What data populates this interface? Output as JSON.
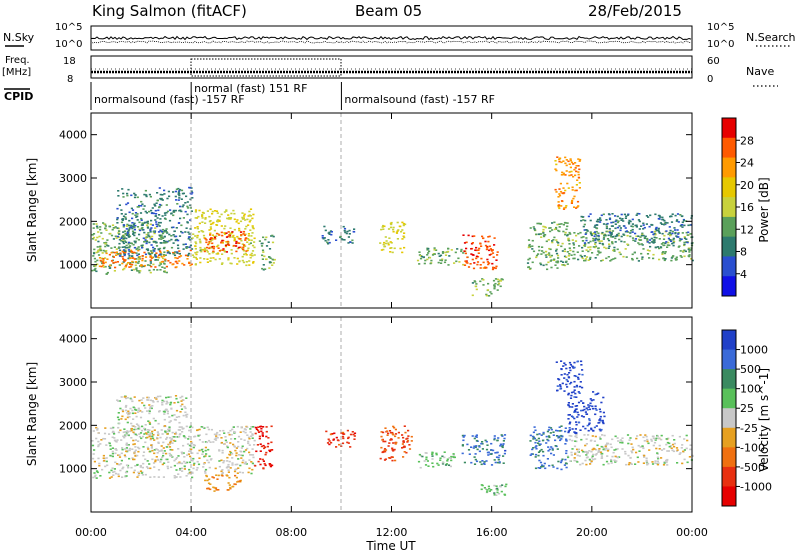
{
  "header": {
    "station": "King Salmon (fitACF)",
    "beam": "Beam 05",
    "date": "28/Feb/2015"
  },
  "labels": {
    "nsky": "N.Sky",
    "nsearch": "N.Search",
    "freq_line1": "Freq.",
    "freq_line2": "[MHz]",
    "nave": "Nave",
    "cpid": "CPID",
    "exp10_low": "10^0",
    "exp10_high": "10^5",
    "freq_ticks": [
      "18",
      "8"
    ],
    "nave_ticks": [
      "60",
      "0"
    ]
  },
  "cpid_segments": [
    {
      "label": "normalsound (fast) -157 RF",
      "start_hour": 0.0,
      "end_hour": 4.0
    },
    {
      "label": "normal (fast)  151 RF",
      "start_hour": 4.0,
      "end_hour": 10.0
    },
    {
      "label": "normalsound (fast) -157 RF",
      "start_hour": 10.0,
      "end_hour": 24.0
    }
  ],
  "x_axis": {
    "label": "Time UT",
    "range_hours": [
      0,
      24
    ],
    "tick_labels": [
      "00:00",
      "04:00",
      "08:00",
      "12:00",
      "16:00",
      "20:00",
      "00:00"
    ]
  },
  "y_axis": {
    "label": "Slant Range [km]",
    "range_km": [
      0,
      4500
    ],
    "tick_labels": [
      "1000",
      "2000",
      "3000",
      "4000"
    ]
  },
  "colorbars": {
    "power": {
      "label": "Power [dB]",
      "ticks": [
        "28",
        "24",
        "20",
        "16",
        "12",
        "8",
        "4"
      ],
      "colors": [
        "#e60000",
        "#ff5a00",
        "#ff9a00",
        "#e6c800",
        "#c8d23c",
        "#5aa05a",
        "#2d7a6e",
        "#2a4fd0",
        "#1010e6"
      ]
    },
    "velocity": {
      "label": "Velocity [m s^-1]",
      "ticks": [
        "1000",
        "500",
        "100",
        "25",
        "-25",
        "-100",
        "-500",
        "-1000"
      ],
      "colors": [
        "#2040c8",
        "#3a6ad8",
        "#3a8a60",
        "#59c05a",
        "#c8c8c8",
        "#e6a020",
        "#f07010",
        "#e83010",
        "#e60000"
      ]
    }
  },
  "chart_data": [
    {
      "type": "heatmap",
      "title": "Power [dB]",
      "xlabel": "Time UT",
      "ylabel": "Slant Range [km]",
      "xlim": [
        0,
        24
      ],
      "ylim": [
        0,
        4500
      ],
      "clim": [
        0,
        30
      ],
      "blobs": [
        {
          "t0": 0.0,
          "t1": 3.0,
          "r0": 800,
          "r1": 2000,
          "value": 12
        },
        {
          "t0": 0.3,
          "t1": 4.0,
          "r0": 950,
          "r1": 1350,
          "value": 24
        },
        {
          "t0": 1.0,
          "t1": 4.0,
          "r0": 1200,
          "r1": 2800,
          "value": 8
        },
        {
          "t0": 4.0,
          "t1": 6.5,
          "r0": 1000,
          "r1": 2300,
          "value": 16
        },
        {
          "t0": 4.5,
          "t1": 6.2,
          "r0": 1300,
          "r1": 1800,
          "value": 26
        },
        {
          "t0": 6.7,
          "t1": 7.3,
          "r0": 900,
          "r1": 1700,
          "value": 12
        },
        {
          "t0": 9.2,
          "t1": 10.5,
          "r0": 1500,
          "r1": 1900,
          "value": 8
        },
        {
          "t0": 11.5,
          "t1": 12.5,
          "r0": 1300,
          "r1": 2000,
          "value": 16
        },
        {
          "t0": 13.0,
          "t1": 15.0,
          "r0": 1000,
          "r1": 1400,
          "value": 12
        },
        {
          "t0": 14.8,
          "t1": 16.2,
          "r0": 900,
          "r1": 1700,
          "value": 26
        },
        {
          "t0": 15.2,
          "t1": 16.4,
          "r0": 300,
          "r1": 700,
          "value": 12
        },
        {
          "t0": 17.4,
          "t1": 19.0,
          "r0": 900,
          "r1": 2000,
          "value": 12
        },
        {
          "t0": 18.5,
          "t1": 19.5,
          "r0": 2300,
          "r1": 3500,
          "value": 22
        },
        {
          "t0": 19.0,
          "t1": 24.0,
          "r0": 1100,
          "r1": 1800,
          "value": 12
        },
        {
          "t0": 19.5,
          "t1": 24.0,
          "r0": 1500,
          "r1": 2200,
          "value": 8
        }
      ]
    },
    {
      "type": "heatmap",
      "title": "Velocity [m s^-1]",
      "xlabel": "Time UT",
      "ylabel": "Slant Range [km]",
      "xlim": [
        0,
        24
      ],
      "ylim": [
        0,
        4500
      ],
      "clim": [
        -1000,
        1000
      ],
      "blobs": [
        {
          "t0": 0.0,
          "t1": 4.0,
          "r0": 800,
          "r1": 2000,
          "value": 0
        },
        {
          "t0": 1.0,
          "t1": 3.8,
          "r0": 1800,
          "r1": 2700,
          "value": 0
        },
        {
          "t0": 4.0,
          "t1": 6.5,
          "r0": 900,
          "r1": 2000,
          "value": 0
        },
        {
          "t0": 6.5,
          "t1": 7.2,
          "r0": 1000,
          "r1": 2000,
          "value": -800
        },
        {
          "t0": 4.5,
          "t1": 6.0,
          "r0": 500,
          "r1": 900,
          "value": -300
        },
        {
          "t0": 9.3,
          "t1": 10.5,
          "r0": 1500,
          "r1": 1900,
          "value": -700
        },
        {
          "t0": 11.5,
          "t1": 12.8,
          "r0": 1200,
          "r1": 2000,
          "value": -600
        },
        {
          "t0": 13.0,
          "t1": 14.5,
          "r0": 1000,
          "r1": 1400,
          "value": 200
        },
        {
          "t0": 14.8,
          "t1": 16.5,
          "r0": 1100,
          "r1": 1800,
          "value": 600
        },
        {
          "t0": 15.5,
          "t1": 16.6,
          "r0": 400,
          "r1": 700,
          "value": 200
        },
        {
          "t0": 17.5,
          "t1": 19.0,
          "r0": 1000,
          "r1": 2000,
          "value": 600
        },
        {
          "t0": 18.5,
          "t1": 19.6,
          "r0": 2800,
          "r1": 3500,
          "value": 900
        },
        {
          "t0": 19.0,
          "t1": 20.5,
          "r0": 1800,
          "r1": 2800,
          "value": 900
        },
        {
          "t0": 19.0,
          "t1": 24.0,
          "r0": 1100,
          "r1": 1800,
          "value": 0
        }
      ]
    }
  ]
}
